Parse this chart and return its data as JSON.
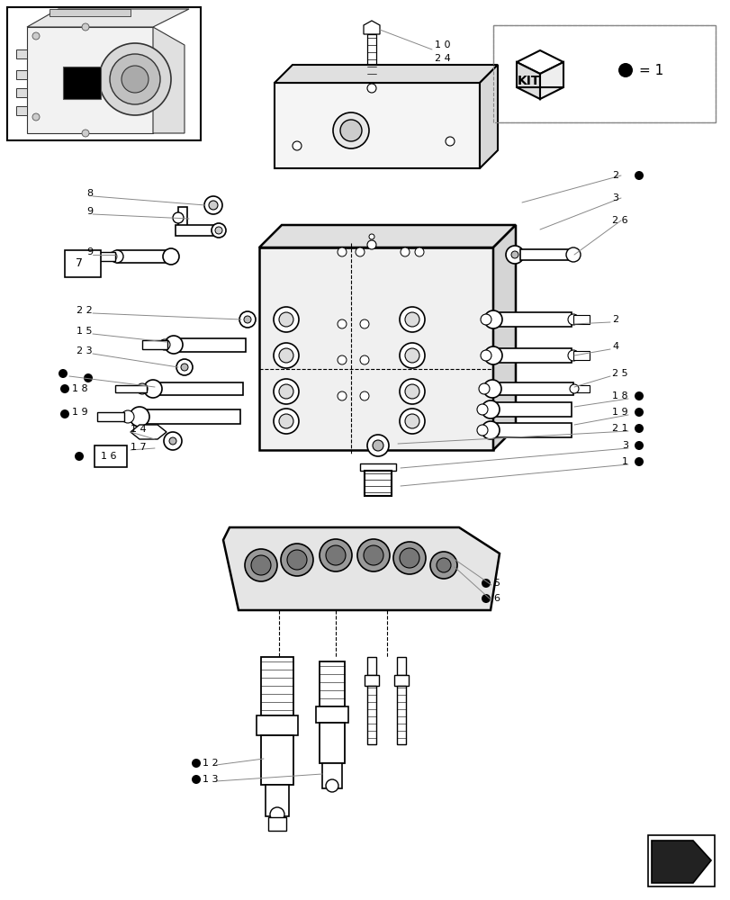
{
  "bg": "#ffffff",
  "fw": 8.12,
  "fh": 10.0,
  "dpi": 100,
  "black": "#000000",
  "gray": "#888888",
  "lgray": "#cccccc",
  "dgray": "#444444"
}
